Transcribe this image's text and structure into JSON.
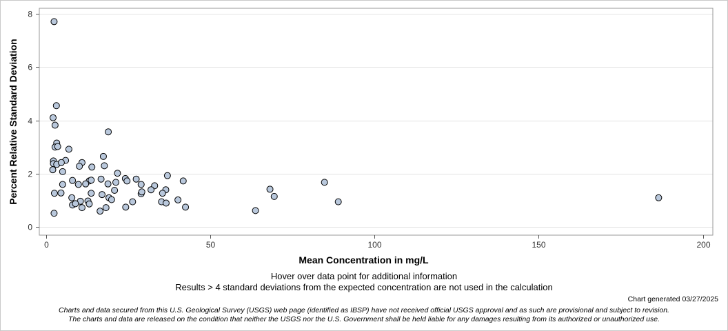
{
  "chart_data": {
    "type": "scatter",
    "xlabel": "Mean Concentration in mg/L",
    "ylabel": "Percent Relative Standard Deviation",
    "xlim": [
      -2,
      203
    ],
    "ylim": [
      -0.3,
      8.2
    ],
    "xticks": [
      0,
      50,
      100,
      150,
      200
    ],
    "yticks": [
      0,
      2,
      4,
      6,
      8
    ],
    "grid": "horizontal",
    "marker_color": "#b9c8dc",
    "marker_edge": "#000000",
    "points": [
      {
        "x": 2.5,
        "y": 7.7
      },
      {
        "x": 3.2,
        "y": 4.55
      },
      {
        "x": 2.2,
        "y": 4.1
      },
      {
        "x": 2.8,
        "y": 3.82
      },
      {
        "x": 19.0,
        "y": 3.57
      },
      {
        "x": 3.3,
        "y": 3.15
      },
      {
        "x": 2.8,
        "y": 3.0
      },
      {
        "x": 3.6,
        "y": 3.02
      },
      {
        "x": 7.0,
        "y": 2.92
      },
      {
        "x": 17.5,
        "y": 2.65
      },
      {
        "x": 2.3,
        "y": 2.48
      },
      {
        "x": 6.0,
        "y": 2.5
      },
      {
        "x": 2.3,
        "y": 2.38
      },
      {
        "x": 3.3,
        "y": 2.35
      },
      {
        "x": 4.7,
        "y": 2.42
      },
      {
        "x": 11.0,
        "y": 2.42
      },
      {
        "x": 10.2,
        "y": 2.28
      },
      {
        "x": 14.0,
        "y": 2.25
      },
      {
        "x": 17.8,
        "y": 2.3
      },
      {
        "x": 2.1,
        "y": 2.15
      },
      {
        "x": 5.1,
        "y": 2.08
      },
      {
        "x": 21.8,
        "y": 2.02
      },
      {
        "x": 37.0,
        "y": 1.93
      },
      {
        "x": 8.1,
        "y": 1.75
      },
      {
        "x": 13.2,
        "y": 1.73
      },
      {
        "x": 13.8,
        "y": 1.76
      },
      {
        "x": 16.8,
        "y": 1.8
      },
      {
        "x": 24.2,
        "y": 1.82
      },
      {
        "x": 24.7,
        "y": 1.73
      },
      {
        "x": 27.5,
        "y": 1.8
      },
      {
        "x": 41.8,
        "y": 1.73
      },
      {
        "x": 84.8,
        "y": 1.68
      },
      {
        "x": 5.1,
        "y": 1.6
      },
      {
        "x": 9.9,
        "y": 1.6
      },
      {
        "x": 12.1,
        "y": 1.62
      },
      {
        "x": 18.9,
        "y": 1.62
      },
      {
        "x": 21.3,
        "y": 1.68
      },
      {
        "x": 29.0,
        "y": 1.6
      },
      {
        "x": 33.1,
        "y": 1.55
      },
      {
        "x": 20.9,
        "y": 1.38
      },
      {
        "x": 32.0,
        "y": 1.4
      },
      {
        "x": 36.5,
        "y": 1.4
      },
      {
        "x": 68.2,
        "y": 1.42
      },
      {
        "x": 2.6,
        "y": 1.27
      },
      {
        "x": 4.6,
        "y": 1.28
      },
      {
        "x": 13.8,
        "y": 1.27
      },
      {
        "x": 17.1,
        "y": 1.22
      },
      {
        "x": 29.0,
        "y": 1.25
      },
      {
        "x": 29.2,
        "y": 1.32
      },
      {
        "x": 35.5,
        "y": 1.27
      },
      {
        "x": 69.5,
        "y": 1.15
      },
      {
        "x": 186.5,
        "y": 1.1
      },
      {
        "x": 7.9,
        "y": 1.1
      },
      {
        "x": 19.2,
        "y": 1.1
      },
      {
        "x": 20.0,
        "y": 1.03
      },
      {
        "x": 40.2,
        "y": 1.02
      },
      {
        "x": 10.5,
        "y": 0.97
      },
      {
        "x": 12.8,
        "y": 0.98
      },
      {
        "x": 26.4,
        "y": 0.95
      },
      {
        "x": 35.2,
        "y": 0.95
      },
      {
        "x": 89.0,
        "y": 0.95
      },
      {
        "x": 8.1,
        "y": 0.83
      },
      {
        "x": 9.0,
        "y": 0.88
      },
      {
        "x": 13.2,
        "y": 0.87
      },
      {
        "x": 36.6,
        "y": 0.9
      },
      {
        "x": 11.0,
        "y": 0.73
      },
      {
        "x": 18.3,
        "y": 0.73
      },
      {
        "x": 24.3,
        "y": 0.75
      },
      {
        "x": 42.5,
        "y": 0.75
      },
      {
        "x": 16.5,
        "y": 0.6
      },
      {
        "x": 63.8,
        "y": 0.62
      },
      {
        "x": 2.5,
        "y": 0.52
      }
    ]
  },
  "notes": {
    "hover": "Hover over data point for additional information",
    "results": "Results > 4 standard deviations from the expected concentration are not used in the calculation"
  },
  "footer": {
    "generated": "Chart generated 03/27/2025",
    "disclaimer_line1": "Charts and data secured from this U.S. Geological Survey (USGS) web page (identified as IBSP) have not received official USGS approval and as such are provisional and subject to revision.",
    "disclaimer_line2": "The charts and data are released on the condition that neither the USGS nor the U.S. Government shall be held liable for any damages resulting from its authorized or unauthorized use."
  }
}
